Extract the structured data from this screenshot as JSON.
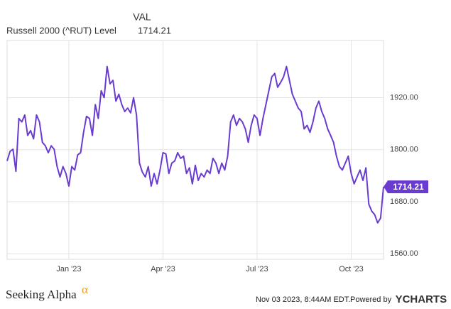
{
  "chart_data": {
    "type": "line",
    "header": "VAL",
    "title": "Russell 2000 (^RUT) Level",
    "categories": [
      null,
      null,
      null,
      null,
      null,
      null,
      null,
      null,
      null,
      null,
      null,
      null,
      null,
      null,
      null,
      null,
      null,
      null,
      null,
      null,
      null,
      "Jan '23",
      null,
      null,
      null,
      null,
      null,
      null,
      null,
      null,
      null,
      null,
      null,
      null,
      null,
      null,
      null,
      null,
      null,
      null,
      null,
      null,
      null,
      null,
      null,
      null,
      null,
      null,
      null,
      null,
      null,
      null,
      null,
      "Apr '23",
      null,
      null,
      null,
      null,
      null,
      null,
      null,
      null,
      null,
      null,
      null,
      null,
      null,
      null,
      null,
      null,
      null,
      null,
      null,
      null,
      null,
      null,
      null,
      null,
      null,
      null,
      null,
      null,
      null,
      null,
      null,
      "Jul '23",
      null,
      null,
      null,
      null,
      null,
      null,
      null,
      null,
      null,
      null,
      null,
      null,
      null,
      null,
      null,
      null,
      null,
      null,
      null,
      null,
      null,
      null,
      null,
      null,
      null,
      null,
      null,
      null,
      null,
      null,
      null,
      "Oct '23",
      null,
      null,
      null,
      null,
      null,
      null,
      null,
      null,
      null,
      null,
      null
    ],
    "series": [
      {
        "name": "Russell 2000 (^RUT) Level",
        "color": "#6a3bd1",
        "values": [
          1774,
          1796,
          1801,
          1750,
          1872,
          1864,
          1880,
          1833,
          1844,
          1825,
          1880,
          1864,
          1817,
          1809,
          1793,
          1809,
          1801,
          1761,
          1737,
          1761,
          1745,
          1716,
          1761,
          1753,
          1788,
          1793,
          1840,
          1877,
          1872,
          1833,
          1904,
          1872,
          1936,
          1920,
          1992,
          1952,
          1960,
          1912,
          1928,
          1904,
          1888,
          1896,
          1885,
          1920,
          1880,
          1769,
          1748,
          1737,
          1761,
          1716,
          1745,
          1721,
          1753,
          1793,
          1790,
          1745,
          1769,
          1774,
          1793,
          1780,
          1785,
          1745,
          1758,
          1721,
          1764,
          1729,
          1745,
          1737,
          1753,
          1745,
          1780,
          1769,
          1745,
          1769,
          1753,
          1785,
          1864,
          1880,
          1856,
          1872,
          1864,
          1848,
          1817,
          1856,
          1880,
          1872,
          1833,
          1872,
          1904,
          1936,
          1968,
          1976,
          1944,
          1955,
          1968,
          1992,
          1960,
          1928,
          1912,
          1896,
          1888,
          1848,
          1856,
          1840,
          1864,
          1896,
          1912,
          1888,
          1872,
          1848,
          1833,
          1817,
          1785,
          1761,
          1753,
          1769,
          1785,
          1745,
          1721,
          1737,
          1753,
          1729,
          1758,
          1674,
          1658,
          1650,
          1631,
          1642,
          1714.21
        ]
      }
    ],
    "ylim": [
      1547,
      2052
    ],
    "yticks": [
      {
        "value": 1560,
        "label": "1560.00"
      },
      {
        "value": 1680,
        "label": "1680.00"
      },
      {
        "value": 1800,
        "label": "1800.00"
      },
      {
        "value": 1920,
        "label": "1920.00"
      }
    ],
    "grid": true,
    "footer": {
      "brand": "Seeking Alpha",
      "brand_mark": "α",
      "timestamp": "Nov 03 2023, 8:44AM EDT.",
      "powered": "Powered by",
      "provider": "YCHARTS"
    }
  }
}
